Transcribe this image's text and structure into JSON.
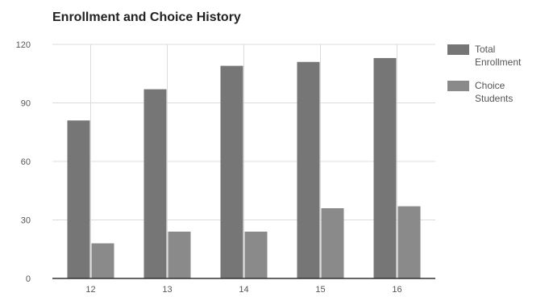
{
  "colors": {
    "background": "#ffffff",
    "grid": "#dcdcdc",
    "axis": "#333333",
    "total_enrollment": "#767676",
    "choice_students": "#8a8a8a"
  },
  "chart_data": {
    "type": "bar",
    "title": "Enrollment and Choice History",
    "xlabel": "",
    "ylabel": "",
    "categories": [
      "12",
      "13",
      "14",
      "15",
      "16"
    ],
    "ylim": [
      0,
      120
    ],
    "yticks": [
      0,
      30,
      60,
      90,
      120
    ],
    "grid": true,
    "legend_position": "right",
    "series": [
      {
        "name": "Total Enrollment",
        "legend_lines": [
          "Total",
          "Enrollment"
        ],
        "color": "#767676",
        "values": [
          81,
          97,
          109,
          111,
          113
        ]
      },
      {
        "name": "Choice Students",
        "legend_lines": [
          "Choice",
          "Students"
        ],
        "color": "#8a8a8a",
        "values": [
          18,
          24,
          24,
          36,
          37
        ]
      }
    ]
  }
}
